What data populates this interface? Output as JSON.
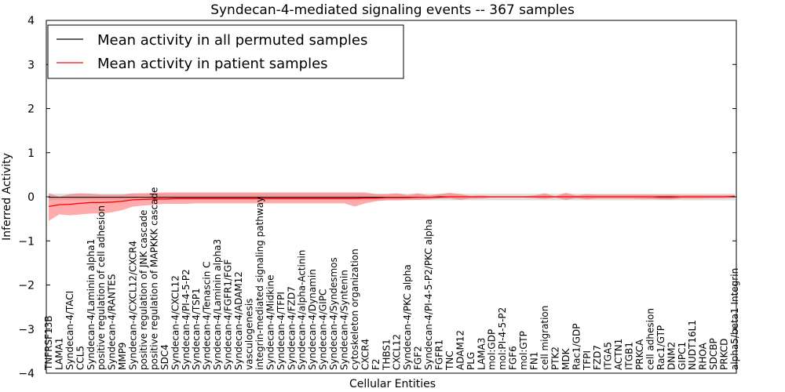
{
  "chart_data": {
    "type": "line",
    "title": "Syndecan-4-mediated signaling events -- 367 samples",
    "xlabel": "Cellular Entities",
    "ylabel": "Inferred Activity",
    "ylim": [
      -4,
      4
    ],
    "yticks": [
      -4,
      -3,
      -2,
      -1,
      0,
      1,
      2,
      3,
      4
    ],
    "ytick_labels": [
      "−4",
      "−3",
      "−2",
      "−1",
      "0",
      "1",
      "2",
      "3",
      "4"
    ],
    "legend_position": "top-left",
    "categories": [
      "TNFRSF13B",
      "LAMA1",
      "Syndecan-4/TACI",
      "CCL5",
      "Syndecan-4/Laminin alpha1",
      "positive regulation of cell adhesion",
      "Syndecan-4/RANTES",
      "MMP9",
      "Syndecan-4/CXCL12/CXCR4",
      "positive regulation of JNK cascade",
      "positive regulation of MAPKKK cascade",
      "SDC4",
      "Syndecan-4/CXCL12",
      "Syndecan-4/PI-4-5-P2",
      "Syndecan-4/TSP1",
      "Syndecan-4/Tenascin C",
      "Syndecan-4/Laminin alpha3",
      "Syndecan-4/FGFR1/FGF",
      "Syndecan-4/ADAM12",
      "vasculogenesis",
      "integrin-mediated signaling pathway",
      "Syndecan-4/Midkine",
      "Syndecan-4/TFPI",
      "Syndecan-4/FZD7",
      "Syndecan-4/alpha-Actinin",
      "Syndecan-4/Dynamin",
      "Syndecan-4/GIPC",
      "Syndecan-4/Syndesmos",
      "Syndecan-4/Syntenin",
      "cytoskeleton organization",
      "CXCR4",
      "F2",
      "THBS1",
      "CXCL12",
      "Syndecan-4/PKC alpha",
      "FGF2",
      "Syndecan-4/PI-4-5-P2/PKC alpha",
      "FGFR1",
      "TNC",
      "ADAM12",
      "PLG",
      "LAMA3",
      "mol:GDP",
      "mol:PI-4-5-P2",
      "FGF6",
      "mol:GTP",
      "FN1",
      "cell migration",
      "PTK2",
      "MDK",
      "Rac1/GDP",
      "TFPI",
      "FZD7",
      "ITGA5",
      "ACTN1",
      "ITGB1",
      "PRKCA",
      "cell adhesion",
      "Rac1/GTP",
      "DNM2",
      "GIPC1",
      "NUDT16L1",
      "RHOA",
      "SDCBP",
      "PRKCD",
      "alpha5/beta1 Integrin"
    ],
    "series": [
      {
        "name": "Mean activity in all permuted samples",
        "color": "#000000",
        "values": [
          -0.01,
          -0.01,
          -0.01,
          -0.01,
          -0.01,
          -0.01,
          -0.01,
          -0.01,
          -0.01,
          -0.01,
          -0.01,
          -0.01,
          -0.01,
          -0.01,
          -0.01,
          -0.01,
          -0.01,
          -0.01,
          -0.01,
          -0.01,
          -0.01,
          -0.01,
          -0.01,
          -0.01,
          -0.01,
          -0.01,
          -0.01,
          -0.01,
          -0.01,
          -0.01,
          -0.01,
          -0.01,
          -0.01,
          -0.01,
          -0.01,
          -0.01,
          -0.01,
          0,
          0,
          0,
          0,
          0,
          0,
          0,
          0,
          0,
          0,
          0,
          0,
          0,
          0,
          0,
          0,
          0,
          0,
          0,
          0,
          0,
          0,
          0,
          0,
          0,
          0,
          0,
          0,
          0
        ],
        "spread_lower": [
          -0.08,
          -0.08,
          -0.08,
          -0.08,
          -0.08,
          -0.08,
          -0.08,
          -0.08,
          -0.08,
          -0.08,
          -0.08,
          -0.08,
          -0.08,
          -0.08,
          -0.08,
          -0.08,
          -0.08,
          -0.08,
          -0.08,
          -0.08,
          -0.08,
          -0.08,
          -0.08,
          -0.08,
          -0.08,
          -0.08,
          -0.08,
          -0.08,
          -0.08,
          -0.08,
          -0.08,
          -0.08,
          -0.08,
          -0.08,
          -0.08,
          -0.08,
          -0.08,
          -0.08,
          -0.08,
          -0.08,
          -0.08,
          -0.08,
          -0.08,
          -0.08,
          -0.08,
          -0.08,
          -0.08,
          -0.08,
          -0.08,
          -0.08,
          -0.08,
          -0.08,
          -0.08,
          -0.08,
          -0.08,
          -0.08,
          -0.08,
          -0.08,
          -0.08,
          -0.08,
          -0.08,
          -0.08,
          -0.08,
          -0.08,
          -0.08,
          -0.08
        ],
        "spread_upper": [
          0.07,
          0.07,
          0.07,
          0.07,
          0.07,
          0.07,
          0.07,
          0.07,
          0.07,
          0.07,
          0.07,
          0.07,
          0.07,
          0.07,
          0.07,
          0.07,
          0.07,
          0.07,
          0.07,
          0.07,
          0.07,
          0.07,
          0.07,
          0.07,
          0.07,
          0.07,
          0.07,
          0.07,
          0.07,
          0.07,
          0.07,
          0.07,
          0.07,
          0.07,
          0.07,
          0.07,
          0.07,
          0.07,
          0.07,
          0.07,
          0.07,
          0.07,
          0.07,
          0.07,
          0.07,
          0.07,
          0.07,
          0.07,
          0.07,
          0.07,
          0.07,
          0.07,
          0.07,
          0.07,
          0.07,
          0.07,
          0.07,
          0.07,
          0.07,
          0.07,
          0.07,
          0.07,
          0.07,
          0.07,
          0.07,
          0.07
        ]
      },
      {
        "name": "Mean activity in patient samples",
        "color": "#ff0000",
        "values": [
          -0.22,
          -0.18,
          -0.17,
          -0.15,
          -0.13,
          -0.13,
          -0.12,
          -0.1,
          -0.07,
          -0.06,
          -0.05,
          -0.05,
          -0.04,
          -0.04,
          -0.04,
          -0.04,
          -0.04,
          -0.04,
          -0.04,
          -0.04,
          -0.04,
          -0.04,
          -0.04,
          -0.04,
          -0.04,
          -0.04,
          -0.04,
          -0.04,
          -0.04,
          -0.04,
          -0.03,
          -0.03,
          -0.02,
          -0.02,
          -0.02,
          -0.01,
          -0.01,
          -0.01,
          0,
          0,
          0,
          0,
          0,
          0,
          0,
          0,
          0,
          0,
          0,
          0,
          0,
          0,
          0,
          0,
          0,
          0,
          0,
          0,
          -0.01,
          -0.01,
          0,
          0,
          0,
          0,
          0,
          0.01
        ],
        "spread_lower": [
          -0.55,
          -0.4,
          -0.42,
          -0.4,
          -0.38,
          -0.38,
          -0.35,
          -0.3,
          -0.22,
          -0.2,
          -0.18,
          -0.16,
          -0.16,
          -0.16,
          -0.15,
          -0.15,
          -0.15,
          -0.15,
          -0.15,
          -0.15,
          -0.15,
          -0.15,
          -0.15,
          -0.15,
          -0.15,
          -0.15,
          -0.15,
          -0.15,
          -0.15,
          -0.22,
          -0.15,
          -0.1,
          -0.08,
          -0.08,
          -0.07,
          -0.07,
          -0.06,
          -0.04,
          -0.04,
          -0.07,
          -0.04,
          -0.04,
          -0.02,
          -0.02,
          -0.02,
          -0.02,
          -0.03,
          -0.05,
          -0.02,
          -0.07,
          -0.03,
          -0.06,
          -0.04,
          -0.04,
          -0.04,
          -0.04,
          -0.05,
          -0.05,
          -0.06,
          -0.06,
          -0.04,
          -0.04,
          -0.04,
          -0.03,
          -0.03,
          -0.02
        ],
        "spread_upper": [
          0.08,
          0.0,
          0.06,
          0.08,
          0.07,
          0.05,
          0.05,
          0.05,
          0.08,
          0.08,
          0.09,
          0.1,
          0.1,
          0.1,
          0.1,
          0.1,
          0.1,
          0.1,
          0.1,
          0.1,
          0.1,
          0.1,
          0.1,
          0.1,
          0.1,
          0.1,
          0.1,
          0.1,
          0.1,
          0.1,
          0.1,
          0.06,
          0.06,
          0.08,
          0.04,
          0.08,
          0.03,
          0.06,
          0.09,
          0.06,
          0.02,
          0.03,
          0.01,
          0.01,
          0.01,
          0.01,
          0.03,
          0.08,
          0.01,
          0.09,
          0.03,
          0.06,
          0.05,
          0.05,
          0.05,
          0.05,
          0.05,
          0.05,
          0.05,
          0.05,
          0.04,
          0.04,
          0.04,
          0.04,
          0.04,
          0.04
        ]
      }
    ],
    "grey_band_color": "#bbbbbb",
    "red_band_color": "#ff6666"
  }
}
